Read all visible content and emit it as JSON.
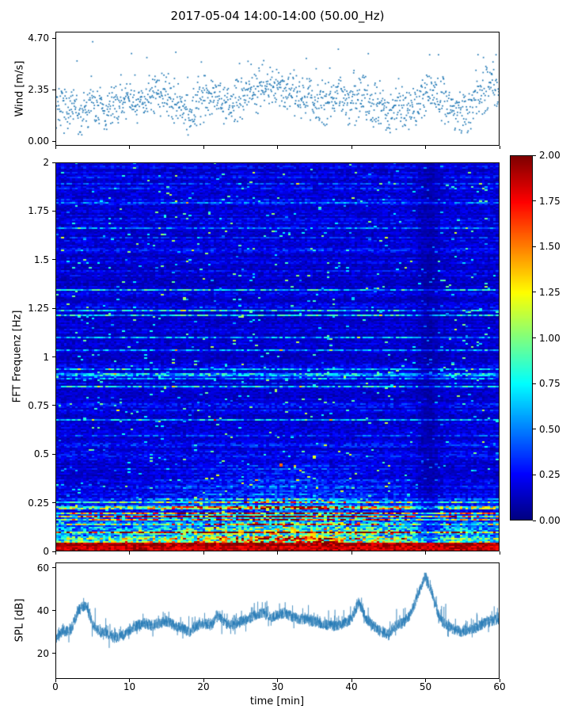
{
  "figure": {
    "title": "2017-05-04 14:00-14:00 (50.00_Hz)"
  },
  "chart_data": [
    {
      "id": "wind",
      "type": "scatter",
      "ylabel": "Wind [m/s]",
      "xlim": [
        0,
        60
      ],
      "ylim": [
        -0.2,
        5.0
      ],
      "yticks": [
        0,
        2.35,
        4.7
      ],
      "ytick_labels": [
        "0.00",
        "2.35",
        "4.70"
      ],
      "marker_color": "#1f77b4",
      "n_points": 1300,
      "seed": 7,
      "noise_spread": 1.2,
      "gust_max": 4.7,
      "per_min_mean": [
        1.7,
        1.5,
        1.6,
        1.3,
        1.5,
        1.7,
        1.4,
        1.2,
        1.5,
        1.8,
        2.0,
        1.6,
        1.8,
        2.3,
        2.2,
        2.0,
        1.8,
        1.5,
        1.3,
        1.6,
        2.0,
        2.2,
        1.9,
        1.6,
        1.8,
        2.1,
        2.3,
        2.2,
        2.5,
        2.4,
        2.6,
        2.3,
        2.2,
        2.0,
        1.8,
        2.0,
        1.7,
        1.9,
        2.1,
        1.8,
        1.6,
        1.9,
        2.0,
        1.7,
        1.5,
        1.3,
        1.4,
        1.6,
        1.4,
        1.7,
        2.1,
        2.4,
        2.0,
        1.7,
        1.4,
        1.3,
        1.5,
        1.9,
        2.2,
        2.4,
        2.3
      ]
    },
    {
      "id": "spectrogram",
      "type": "heatmap",
      "ylabel": "FFT Frequenz [Hz]",
      "xlim": [
        0,
        60
      ],
      "ylim": [
        0,
        2
      ],
      "yticks": [
        0,
        0.25,
        0.5,
        0.75,
        1,
        1.25,
        1.5,
        1.75,
        2
      ],
      "ytick_labels": [
        "0",
        "0.25",
        "0.5",
        "0.75",
        "1",
        "1.25",
        "1.5",
        "1.75",
        "2"
      ],
      "colormap": "jet",
      "clim": [
        0,
        2
      ],
      "colorbar_ticks": [
        0,
        0.25,
        0.5,
        0.75,
        1,
        1.25,
        1.5,
        1.75,
        2
      ],
      "colorbar_tick_labels": [
        "0.00",
        "0.25",
        "0.50",
        "0.75",
        "1.00",
        "1.25",
        "1.50",
        "1.75",
        "2.00"
      ],
      "seed": 42,
      "rows": 245,
      "cols": 160,
      "freq_profile": [
        [
          0,
          2.0
        ],
        [
          0.03,
          1.9
        ],
        [
          0.06,
          1.35
        ],
        [
          0.12,
          1.0
        ],
        [
          0.2,
          0.62
        ],
        [
          0.3,
          0.42
        ],
        [
          0.45,
          0.3
        ],
        [
          0.7,
          0.26
        ],
        [
          1.0,
          0.24
        ],
        [
          1.5,
          0.23
        ],
        [
          2.0,
          0.26
        ]
      ],
      "features": {
        "dark_band_min": 50.7,
        "dark_band_strength": 0.5,
        "low_freq_peak_min": 31,
        "bottom_saturated_below_hz": 0.04
      }
    },
    {
      "id": "spl",
      "type": "line",
      "ylabel": "SPL [dB]",
      "xlabel": "time [min]",
      "xlim": [
        0,
        60
      ],
      "ylim": [
        8,
        62.5
      ],
      "yticks": [
        20,
        40,
        60
      ],
      "ytick_labels": [
        "20",
        "40",
        "60"
      ],
      "xticks": [
        0,
        10,
        20,
        30,
        40,
        50,
        60
      ],
      "xtick_labels": [
        "0",
        "10",
        "20",
        "30",
        "40",
        "50",
        "60"
      ],
      "line_color": "#1f77b4",
      "seed": 99,
      "n_points": 3600,
      "noise_spread": 2.6,
      "envelope_db_per_min": [
        27,
        30,
        31,
        40,
        43,
        33,
        30,
        29,
        27,
        28,
        31,
        33,
        34,
        33,
        34,
        35,
        33,
        32,
        30,
        33,
        34,
        33,
        38,
        34,
        33,
        35,
        36,
        38,
        39,
        37,
        38,
        39,
        37,
        36,
        36,
        35,
        34,
        33,
        33,
        34,
        36,
        44,
        36,
        33,
        30,
        29,
        33,
        34,
        38,
        47,
        56,
        48,
        36,
        33,
        31,
        30,
        31,
        32,
        34,
        35,
        36
      ]
    }
  ]
}
